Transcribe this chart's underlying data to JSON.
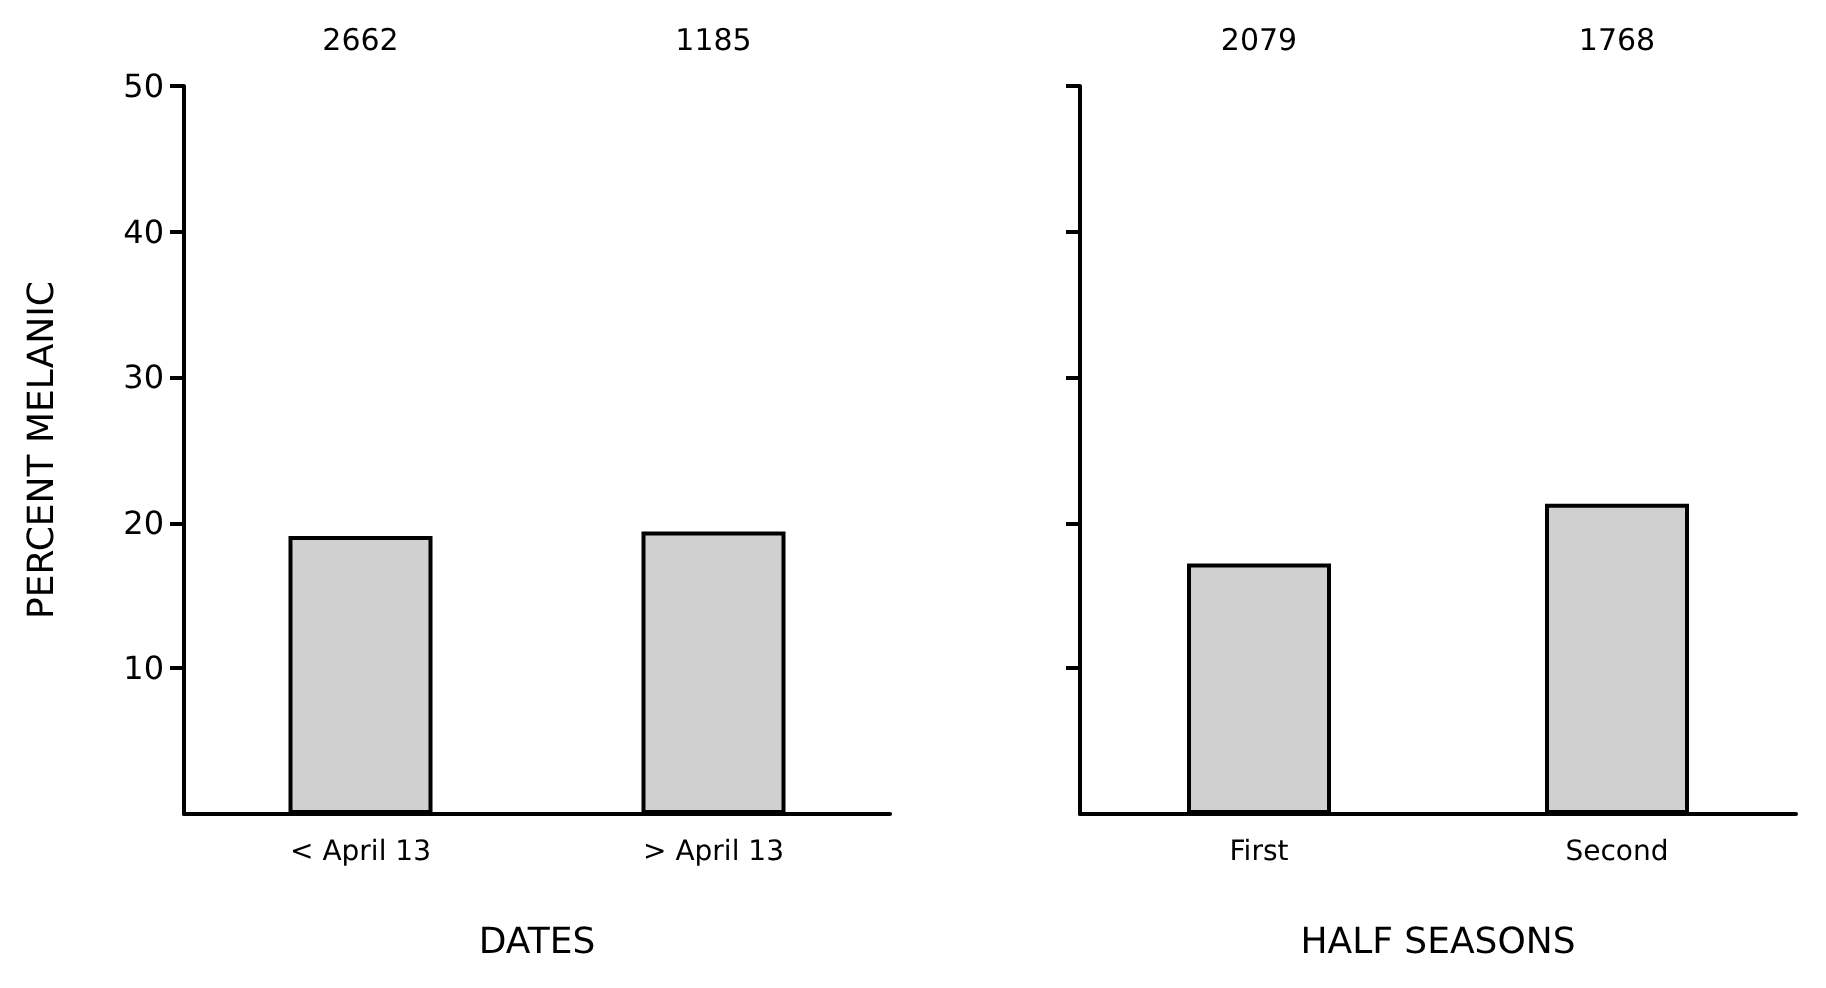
{
  "chart_data": [
    {
      "type": "bar",
      "categories": [
        "< April 13",
        "> April 13"
      ],
      "values": [
        19.1,
        19.4
      ],
      "color": "#d0d0d0",
      "xlabel": "DATES",
      "ylabel": "PERCENT MELANIC",
      "ylim": [
        0,
        50
      ],
      "yticks": [
        10,
        20,
        30,
        40,
        50
      ],
      "annotations": [
        "2662",
        "1185"
      ]
    },
    {
      "type": "bar",
      "categories": [
        "First",
        "Second"
      ],
      "values": [
        17.2,
        21.3
      ],
      "color": "#d0d0d0",
      "xlabel": "HALF SEASONS",
      "ylim": [
        0,
        50
      ],
      "yticks": [
        10,
        20,
        30,
        40,
        50
      ],
      "tick_labels": "x",
      "annotations": [
        "2079",
        "1768"
      ]
    }
  ]
}
